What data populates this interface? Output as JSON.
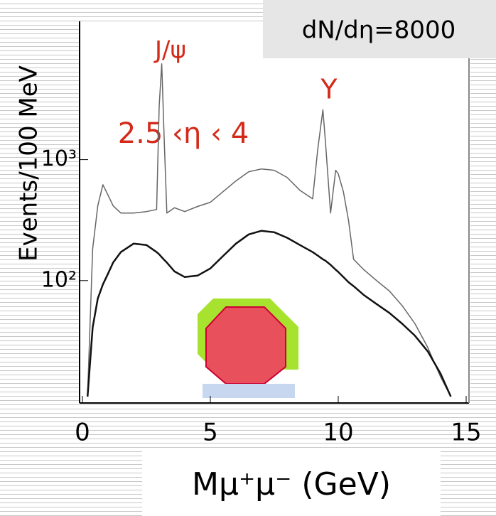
{
  "chart_data": {
    "type": "line",
    "annotations": [
      "dN/dη=8000",
      "J/ψ",
      "Y",
      "2.5 ‹η ‹ 4"
    ],
    "xlabel": "Mμ⁺μ⁻ (GeV)",
    "ylabel": "Events/100 MeV",
    "log_y": true,
    "xlim": [
      0,
      15
    ],
    "xticks": [
      0,
      5,
      10,
      15
    ],
    "ylim": [
      10,
      13000
    ],
    "yticks": [
      {
        "value": 1000,
        "label": "10³"
      },
      {
        "value": 100,
        "label": "10²"
      }
    ],
    "x": [
      0.2,
      0.4,
      0.6,
      0.8,
      1.0,
      1.2,
      1.5,
      2,
      2.5,
      2.9,
      3.0,
      3.1,
      3.2,
      3.3,
      3.6,
      4,
      4.5,
      5,
      5.5,
      6,
      6.5,
      7,
      7.5,
      8,
      8.5,
      9,
      9.2,
      9.4,
      9.5,
      9.7,
      9.9,
      10.0,
      10.2,
      10.4,
      10.6,
      11,
      11.5,
      12,
      12.5,
      13,
      13.5,
      14,
      14.4
    ],
    "series": [
      {
        "color": "#666666",
        "values": [
          11,
          183,
          415,
          620,
          510,
          415,
          362,
          362,
          372,
          387,
          2760,
          6200,
          1400,
          362,
          400,
          372,
          410,
          444,
          544,
          666,
          794,
          838,
          816,
          713,
          558,
          474,
          1225,
          2580,
          1400,
          362,
          816,
          763,
          544,
          316,
          150,
          123,
          100,
          82,
          62,
          44,
          28,
          16,
          11
        ]
      },
      {
        "color": "#111111",
        "values": [
          11,
          41,
          71,
          93,
          114,
          141,
          172,
          202,
          197,
          172,
          165,
          156,
          148,
          141,
          119,
          107,
          110,
          126,
          160,
          202,
          241,
          258,
          251,
          226,
          197,
          172,
          161,
          150,
          146,
          135,
          123,
          118,
          107,
          97,
          90,
          76,
          64,
          54,
          44,
          35,
          26,
          17,
          11
        ]
      }
    ]
  }
}
